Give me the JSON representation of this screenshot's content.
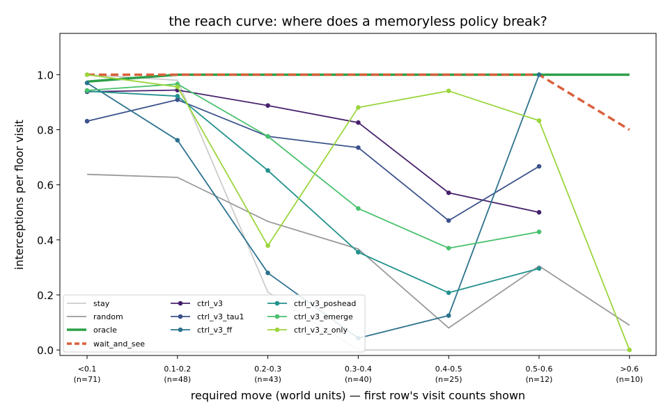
{
  "chart_data": {
    "type": "line",
    "title": "the reach curve: where does a memoryless policy break?",
    "xlabel": "required move (world units) — first row's visit counts shown",
    "ylabel": "interceptions per floor visit",
    "categories": [
      "<0.1",
      "0.1-0.2",
      "0.2-0.3",
      "0.3-0.4",
      "0.4-0.5",
      "0.5-0.6",
      ">0.6"
    ],
    "category_counts": [
      "(n=71)",
      "(n=48)",
      "(n=43)",
      "(n=40)",
      "(n=25)",
      "(n=12)",
      "(n=10)"
    ],
    "ylim": [
      -0.02,
      1.15
    ],
    "yticks": [
      0.0,
      0.2,
      0.4,
      0.6,
      0.8,
      1.0
    ],
    "ytick_labels": [
      "0.0",
      "0.2",
      "0.4",
      "0.6",
      "0.8",
      "1.0"
    ],
    "grid": false,
    "legend_position": "lower-left",
    "series": [
      {
        "name": "stay",
        "color": "#cccccc",
        "style": "solid",
        "markers": false,
        "values": [
          1.0,
          0.98,
          0.21,
          0.0,
          0.0,
          0.0,
          0.0
        ]
      },
      {
        "name": "random",
        "color": "#999999",
        "style": "solid",
        "markers": false,
        "values": [
          0.638,
          0.627,
          0.467,
          0.367,
          0.08,
          0.305,
          0.09
        ]
      },
      {
        "name": "oracle",
        "color": "#2ca048",
        "style": "solid",
        "markers": false,
        "thick": true,
        "values": [
          0.975,
          1.0,
          1.0,
          1.0,
          1.0,
          1.0,
          1.0
        ]
      },
      {
        "name": "wait_and_see",
        "color": "#d9603b",
        "style": "dashed",
        "markers": false,
        "thick": true,
        "values": [
          1.0,
          1.0,
          1.0,
          1.0,
          1.0,
          1.0,
          0.8
        ]
      },
      {
        "name": "ctrl_v3",
        "color": "#46206c",
        "style": "solid",
        "markers": true,
        "values": [
          0.938,
          0.944,
          0.888,
          0.826,
          0.571,
          0.5,
          null
        ]
      },
      {
        "name": "ctrl_v3_tau1",
        "color": "#3b528b",
        "style": "solid",
        "markers": true,
        "values": [
          0.831,
          0.909,
          0.776,
          0.735,
          0.47,
          0.667,
          null
        ]
      },
      {
        "name": "ctrl_v3_ff",
        "color": "#2c728e",
        "style": "solid",
        "markers": true,
        "values": [
          0.97,
          0.762,
          0.28,
          0.043,
          0.125,
          1.0,
          null
        ]
      },
      {
        "name": "ctrl_v3_poshead",
        "color": "#21918c",
        "style": "solid",
        "markers": true,
        "values": [
          0.94,
          0.922,
          0.652,
          0.355,
          0.208,
          0.296,
          null
        ]
      },
      {
        "name": "ctrl_v3_emerge",
        "color": "#49c16d",
        "style": "solid",
        "markers": true,
        "values": [
          0.943,
          0.966,
          0.776,
          0.514,
          0.37,
          0.429,
          null
        ]
      },
      {
        "name": "ctrl_v3_z_only",
        "color": "#9bd53c",
        "style": "solid",
        "markers": true,
        "values": [
          1.0,
          0.956,
          0.379,
          0.881,
          0.941,
          0.833,
          0.0
        ]
      }
    ]
  }
}
